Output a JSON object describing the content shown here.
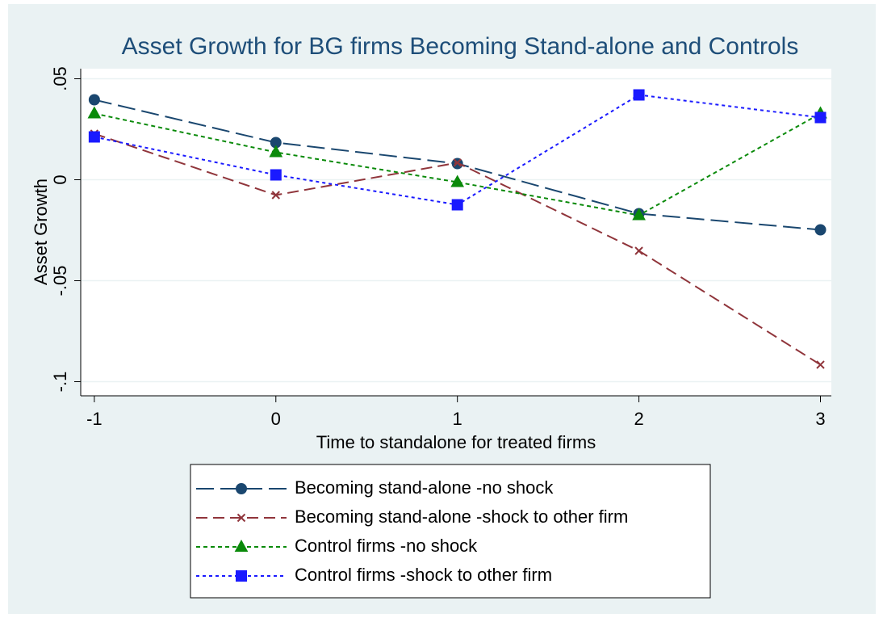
{
  "chart_data": {
    "type": "line",
    "title": "Asset Growth for BG firms Becoming Stand-alone and Controls",
    "xlabel": "Time to standalone for treated firms",
    "ylabel": "Asset Growth",
    "x": [
      -1,
      0,
      1,
      2,
      3
    ],
    "xlim": [
      -1.075,
      3.06
    ],
    "xticks": [
      -1,
      0,
      1,
      2,
      3
    ],
    "ylim": [
      -0.107,
      0.055
    ],
    "yticks": [
      {
        "value": 0.05,
        "label": ".05"
      },
      0,
      {
        "value": -0.05,
        "label": "-.05"
      },
      {
        "value": -0.1,
        "label": "-.1"
      }
    ],
    "grid": true,
    "series": [
      {
        "name": "Becoming stand-alone -no shock",
        "color": "#1a476f",
        "marker": "circle",
        "dash": "22,8",
        "values": [
          0.0396,
          0.0184,
          0.008,
          -0.0168,
          -0.0248
        ]
      },
      {
        "name": "Becoming stand-alone -shock to other firm",
        "color": "#90353b",
        "marker": "x",
        "dash": "14,7",
        "values": [
          0.0228,
          -0.0076,
          0.0084,
          -0.0352,
          -0.0916
        ]
      },
      {
        "name": "Control firms -no shock",
        "color": "#0a8a0a",
        "marker": "triangle",
        "dash": "5,4",
        "values": [
          0.0328,
          0.0136,
          -0.0012,
          -0.0176,
          0.0328
        ]
      },
      {
        "name": "Control firms -shock to other firm",
        "color": "#1a1aff",
        "marker": "square",
        "dash": "4,4",
        "values": [
          0.0212,
          0.0024,
          -0.0124,
          0.042,
          0.0308
        ]
      }
    ]
  }
}
